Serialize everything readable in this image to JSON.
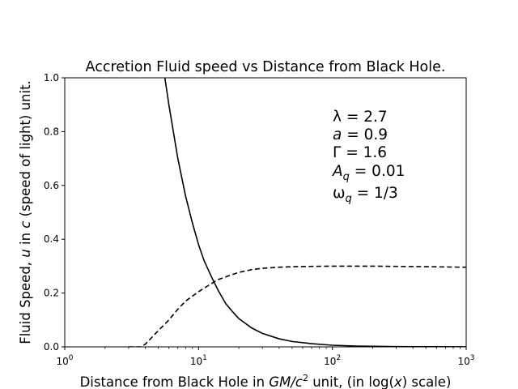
{
  "chart_data": {
    "type": "line",
    "title": "Accretion Fluid speed vs Distance from Black Hole.",
    "xlabel_parts": {
      "pre": "Distance from Black Hole in ",
      "math": "GM/c",
      "sup": "2",
      "mid": " unit, (in log(",
      "var": "x",
      "post": ") scale)"
    },
    "ylabel_parts": {
      "pre": "Fluid Speed, ",
      "var1": "u",
      "mid": " in ",
      "var2": "c",
      "post": " (speed of light) unit."
    },
    "x_scale": "log",
    "xlim": [
      1,
      1000
    ],
    "ylim": [
      0,
      1
    ],
    "x_ticks": [
      {
        "base": "10",
        "exp": "0",
        "value": 1
      },
      {
        "base": "10",
        "exp": "1",
        "value": 10
      },
      {
        "base": "10",
        "exp": "2",
        "value": 100
      },
      {
        "base": "10",
        "exp": "3",
        "value": 1000
      }
    ],
    "y_ticks": [
      "0.0",
      "0.2",
      "0.4",
      "0.6",
      "0.8",
      "1.0"
    ],
    "grid": false,
    "annotations": [
      {
        "sym": "λ",
        "sub": "",
        "eq": " = 2.7"
      },
      {
        "sym": "a",
        "sub": "",
        "eq": " = 0.9"
      },
      {
        "sym": "Γ",
        "sub": "",
        "eq": " = 1.6"
      },
      {
        "sym": "A",
        "sub": "q",
        "eq": " = 0.01"
      },
      {
        "sym": "ω",
        "sub": "q",
        "eq": " = 1/3"
      }
    ],
    "series": [
      {
        "style": "solid",
        "x": [
          5.6,
          6,
          7,
          8,
          9,
          10,
          11,
          12.5,
          14,
          16,
          18,
          20,
          25,
          30,
          40,
          50,
          70,
          100,
          150,
          200,
          300,
          500,
          1000
        ],
        "y": [
          1.0,
          0.9,
          0.7,
          0.56,
          0.46,
          0.38,
          0.32,
          0.26,
          0.21,
          0.16,
          0.13,
          0.105,
          0.07,
          0.05,
          0.03,
          0.02,
          0.012,
          0.006,
          0.003,
          0.002,
          0.001,
          0.0005,
          0.0001
        ]
      },
      {
        "style": "dashed",
        "x": [
          3.0,
          3.7,
          4,
          5,
          6,
          7,
          8,
          10,
          12,
          14,
          17,
          20,
          25,
          30,
          40,
          50,
          70,
          100,
          150,
          200,
          300,
          500,
          1000
        ],
        "y": [
          0.0,
          0.0,
          0.01,
          0.06,
          0.1,
          0.14,
          0.17,
          0.205,
          0.23,
          0.25,
          0.265,
          0.277,
          0.287,
          0.292,
          0.296,
          0.298,
          0.299,
          0.3,
          0.3,
          0.3,
          0.299,
          0.298,
          0.296
        ]
      }
    ]
  }
}
